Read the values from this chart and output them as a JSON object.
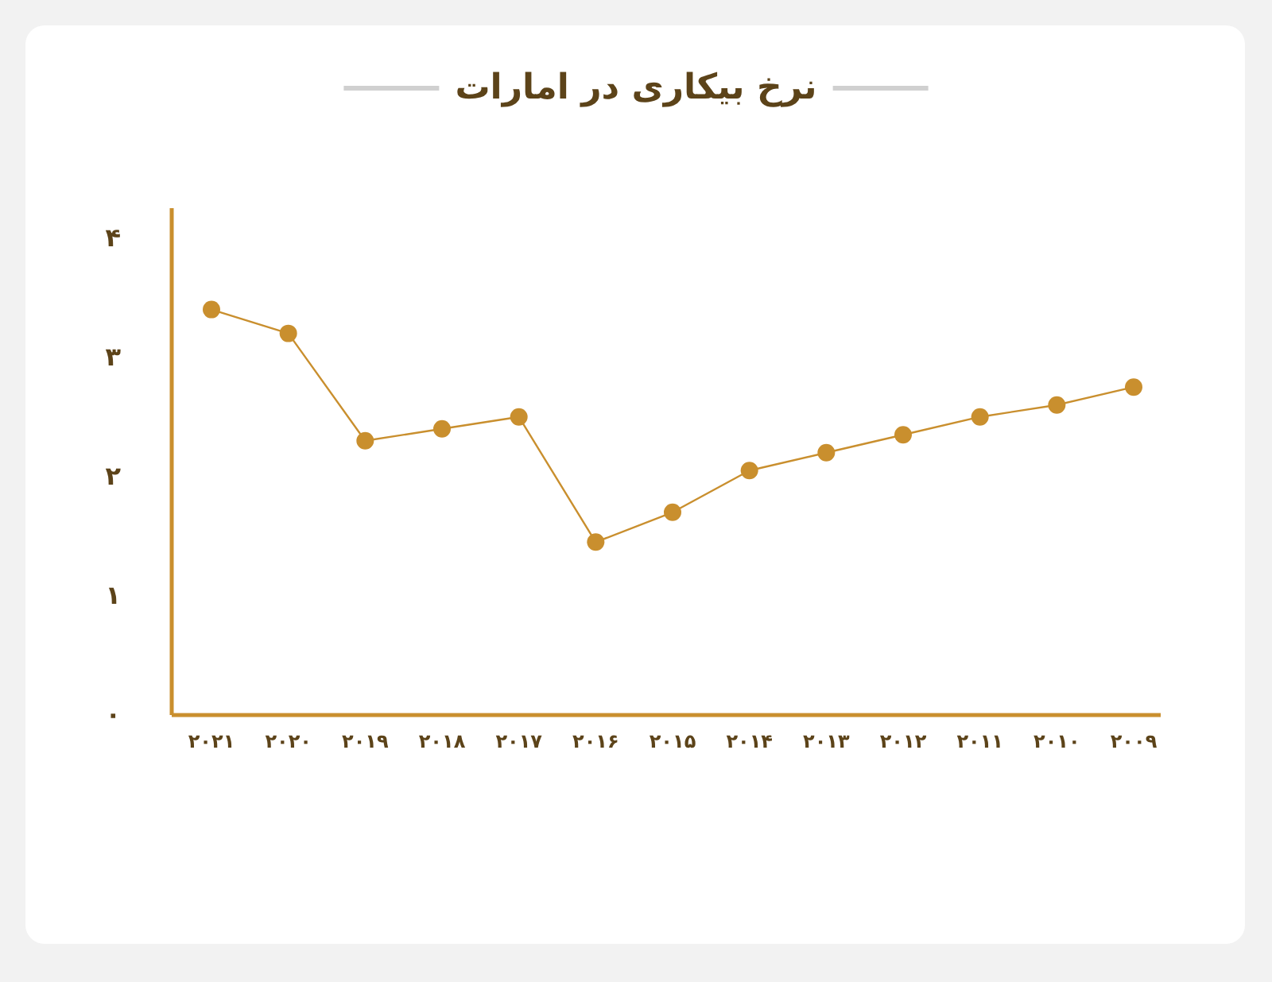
{
  "chart_data": {
    "type": "line",
    "title": "نرخ بیکاری در امارات",
    "categories": [
      "۲۰۲۱",
      "۲۰۲۰",
      "۲۰۱۹",
      "۲۰۱۸",
      "۲۰۱۷",
      "۲۰۱۶",
      "۲۰۱۵",
      "۲۰۱۴",
      "۲۰۱۳",
      "۲۰۱۲",
      "۲۰۱۱",
      "۲۰۱۰",
      "۲۰۰۹"
    ],
    "series": [
      {
        "color": "#c98f2e",
        "values": [
          3.4,
          3.2,
          2.3,
          2.4,
          2.5,
          1.45,
          1.7,
          2.05,
          2.2,
          2.35,
          2.5,
          2.6,
          2.75
        ]
      }
    ],
    "ylim": [
      0,
      4.25
    ],
    "yticks": [
      {
        "value": 0,
        "label": "۰"
      },
      {
        "value": 1,
        "label": "۱"
      },
      {
        "value": 2,
        "label": "۲"
      },
      {
        "value": 3,
        "label": "۳"
      },
      {
        "value": 4,
        "label": "۴"
      }
    ],
    "marker": "circle",
    "line_style": "solid",
    "grid": false
  }
}
